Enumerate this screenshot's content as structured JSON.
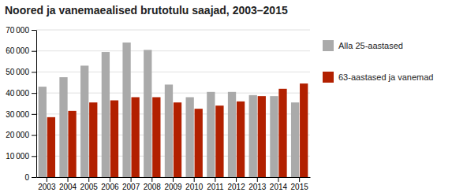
{
  "chart_data": {
    "type": "bar",
    "title": "Noored ja vanemaealised brutotulu saajad, 2003–2015",
    "categories": [
      "2003",
      "2004",
      "2005",
      "2006",
      "2007",
      "2008",
      "2009",
      "2010",
      "2011",
      "2012",
      "2013",
      "2014",
      "2015"
    ],
    "series": [
      {
        "name": "Alla 25-aastased",
        "color": "#aaaaaa",
        "values": [
          43000,
          47500,
          53000,
          59500,
          64000,
          60500,
          44000,
          38000,
          40500,
          40500,
          39000,
          38500,
          35500
        ]
      },
      {
        "name": "63-aastased ja vanemad",
        "color": "#b22000",
        "values": [
          28500,
          31500,
          35500,
          36500,
          38000,
          38000,
          35500,
          32500,
          34000,
          36000,
          38500,
          42000,
          44500
        ]
      }
    ],
    "ylim": [
      0,
      70000
    ],
    "yticks": [
      0,
      {
        "value": 10000,
        "label": "10 000"
      },
      {
        "value": 20000,
        "label": "20 000"
      },
      {
        "value": 30000,
        "label": "30 000"
      },
      {
        "value": 40000,
        "label": "40 000"
      },
      {
        "value": 50000,
        "label": "50 000"
      },
      {
        "value": 60000,
        "label": "60 000"
      },
      {
        "value": 70000,
        "label": "70 000"
      }
    ],
    "grid": true
  }
}
